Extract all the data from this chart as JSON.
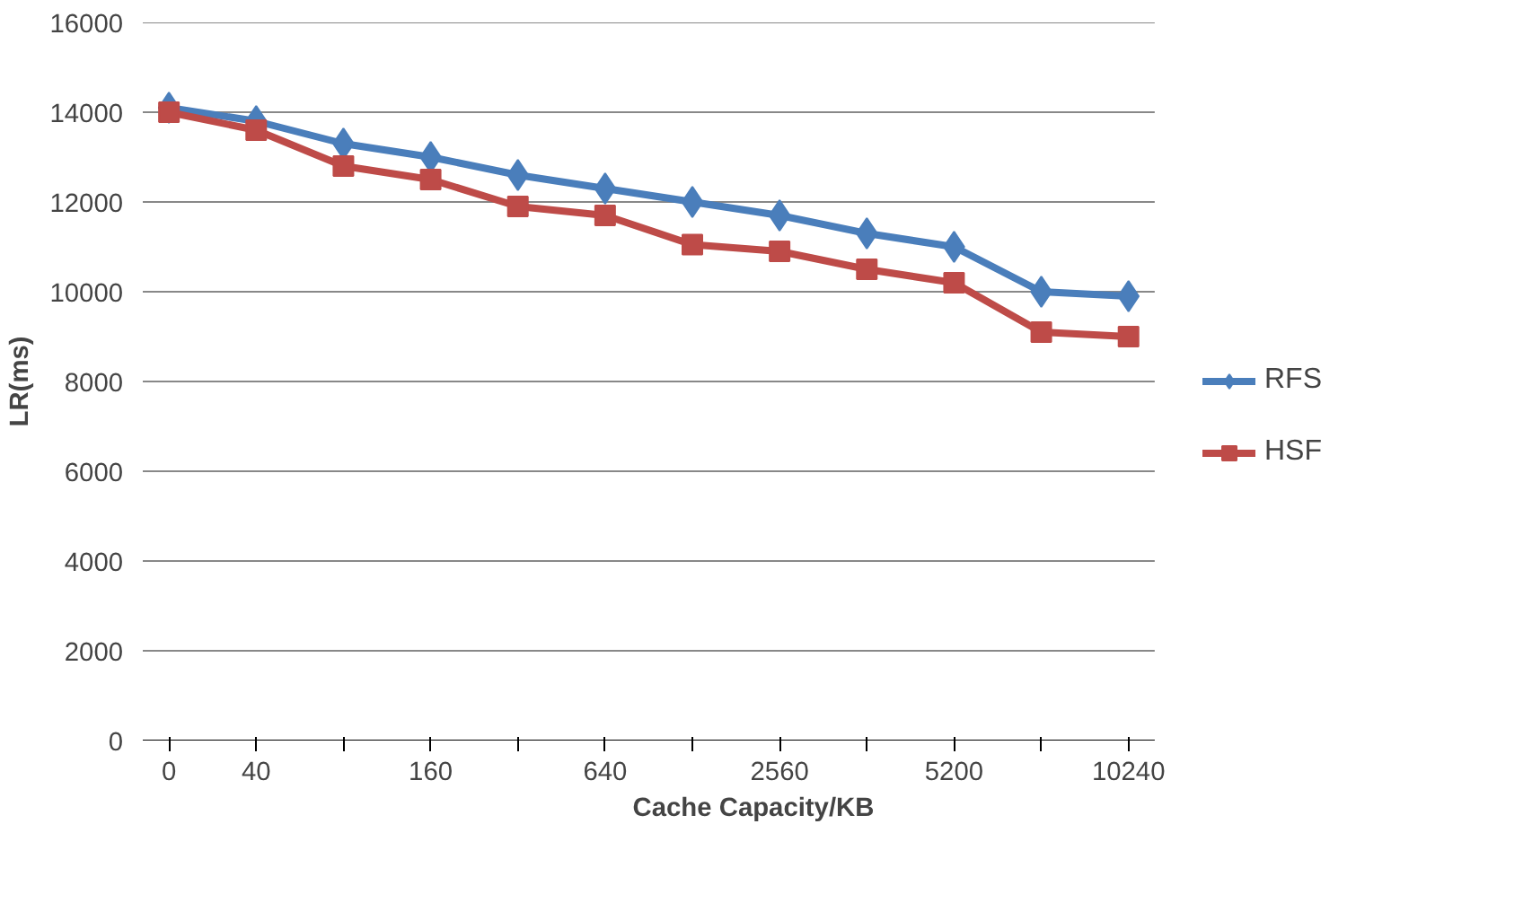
{
  "chart_data": {
    "type": "line",
    "xlabel": "Cache Capacity/KB",
    "ylabel": "LR(ms)",
    "categories": [
      "0",
      "40",
      null,
      "160",
      null,
      "640",
      null,
      "2560",
      null,
      "5200",
      null,
      "10240"
    ],
    "series": [
      {
        "name": "RFS",
        "color": "#4a7ebb",
        "marker": "diamond",
        "values": [
          14100,
          13800,
          13300,
          13000,
          12600,
          12300,
          12000,
          11700,
          11300,
          11000,
          10000,
          9900
        ]
      },
      {
        "name": "HSF",
        "color": "#be4b48",
        "marker": "square",
        "values": [
          14000,
          13600,
          12800,
          12500,
          11900,
          11700,
          11050,
          10900,
          10500,
          10200,
          9100,
          9000
        ]
      }
    ],
    "ylim": [
      0,
      16000
    ],
    "yticks": [
      0,
      2000,
      4000,
      6000,
      8000,
      10000,
      12000,
      14000,
      16000
    ],
    "grid": "y",
    "legend": "right",
    "line_style": "solid"
  }
}
